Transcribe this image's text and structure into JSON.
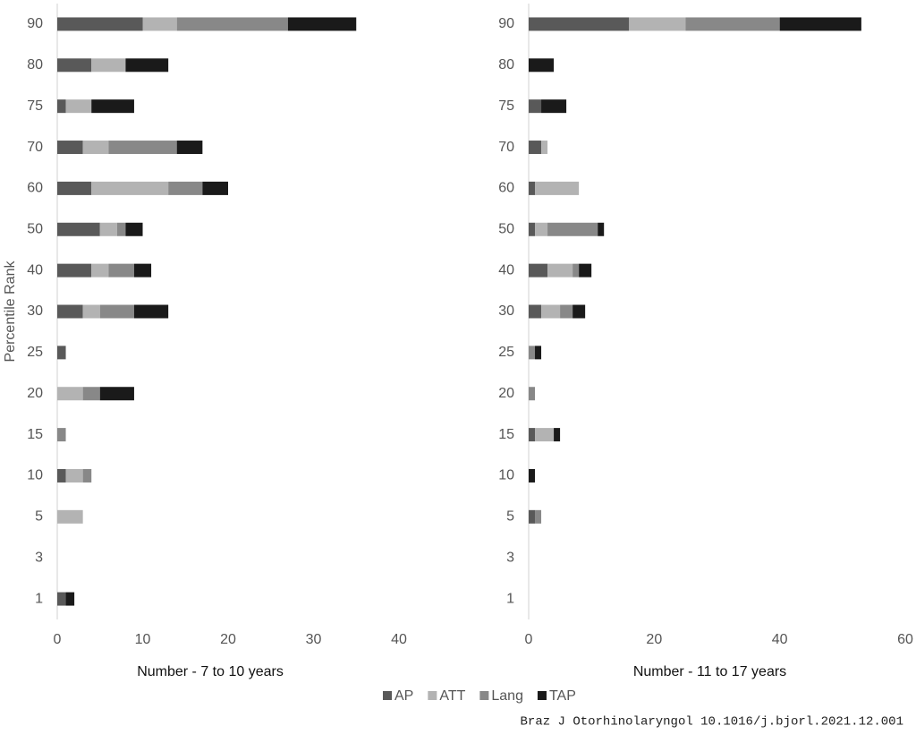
{
  "chart_data": [
    {
      "type": "bar",
      "orientation": "horizontal",
      "stacked": true,
      "y_label": "Percentile Rank",
      "x_label": "Number - 7 to 10 years",
      "categories": [
        "90",
        "80",
        "75",
        "70",
        "60",
        "50",
        "40",
        "30",
        "25",
        "20",
        "15",
        "10",
        "5",
        "3",
        "1"
      ],
      "series": [
        {
          "name": "AP",
          "color": "#595959",
          "values": [
            10,
            4,
            1,
            3,
            4,
            5,
            4,
            3,
            1,
            0,
            0,
            1,
            0,
            0,
            1
          ]
        },
        {
          "name": "ATT",
          "color": "#b3b3b3",
          "values": [
            4,
            4,
            3,
            3,
            9,
            2,
            2,
            2,
            0,
            3,
            0,
            2,
            3,
            0,
            0
          ]
        },
        {
          "name": "Lang",
          "color": "#888888",
          "values": [
            13,
            0,
            0,
            8,
            4,
            1,
            3,
            4,
            0,
            2,
            1,
            1,
            0,
            0,
            0
          ]
        },
        {
          "name": "TAP",
          "color": "#1a1a1a",
          "values": [
            8,
            5,
            5,
            3,
            3,
            2,
            2,
            4,
            0,
            4,
            0,
            0,
            0,
            0,
            1
          ]
        }
      ],
      "xlim": [
        0,
        40
      ],
      "xticks": [
        0,
        10,
        20,
        30,
        40
      ],
      "legend": "bottom"
    },
    {
      "type": "bar",
      "orientation": "horizontal",
      "stacked": true,
      "x_label": "Number - 11 to 17 years",
      "categories": [
        "90",
        "80",
        "75",
        "70",
        "60",
        "50",
        "40",
        "30",
        "25",
        "20",
        "15",
        "10",
        "5",
        "3",
        "1"
      ],
      "series": [
        {
          "name": "AP",
          "color": "#595959",
          "values": [
            16,
            0,
            2,
            2,
            1,
            1,
            3,
            2,
            0,
            0,
            1,
            0,
            1,
            0,
            0
          ]
        },
        {
          "name": "ATT",
          "color": "#b3b3b3",
          "values": [
            9,
            0,
            0,
            1,
            7,
            2,
            4,
            3,
            0,
            0,
            3,
            0,
            0,
            0,
            0
          ]
        },
        {
          "name": "Lang",
          "color": "#888888",
          "values": [
            15,
            0,
            0,
            0,
            0,
            8,
            1,
            2,
            1,
            1,
            0,
            0,
            1,
            0,
            0
          ]
        },
        {
          "name": "TAP",
          "color": "#1a1a1a",
          "values": [
            13,
            4,
            4,
            0,
            0,
            1,
            2,
            2,
            1,
            0,
            1,
            1,
            0,
            0,
            0
          ]
        }
      ],
      "xlim": [
        0,
        60
      ],
      "xticks": [
        0,
        20,
        40,
        60
      ]
    }
  ],
  "source": "Braz J Otorhinolaryngol 10.1016/j.bjorl.2021.12.001"
}
